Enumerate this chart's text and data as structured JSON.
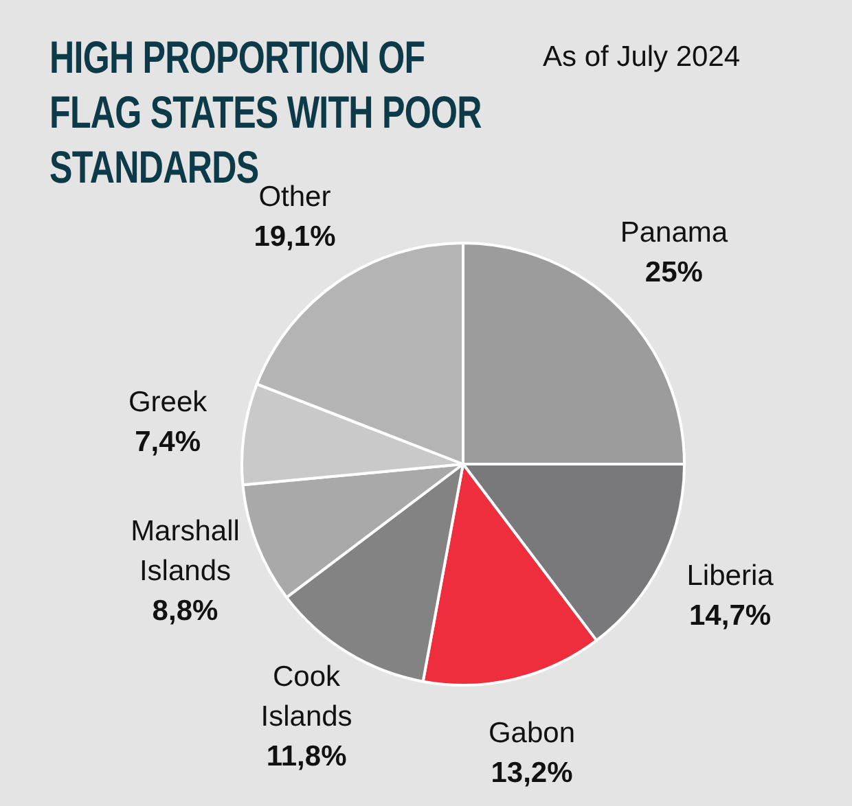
{
  "chart_data": {
    "type": "pie",
    "title": "HIGH PROPORTION OF FLAG STATES WITH POOR STANDARDS",
    "subtitle": "As of July 2024",
    "categories": [
      "Panama",
      "Liberia",
      "Gabon",
      "Cook Islands",
      "Marshall Islands",
      "Greek",
      "Other"
    ],
    "values": [
      25,
      14.7,
      13.2,
      11.8,
      8.8,
      7.4,
      19.1
    ],
    "value_labels": [
      "25%",
      "14,7%",
      "13,2%",
      "11,8%",
      "8,8%",
      "7,4%",
      "19,1%"
    ],
    "colors": [
      "#9c9c9c",
      "#79797b",
      "#ee2e3c",
      "#838383",
      "#a9a9a9",
      "#c9c9c9",
      "#b4b4b4"
    ],
    "legend": false
  }
}
